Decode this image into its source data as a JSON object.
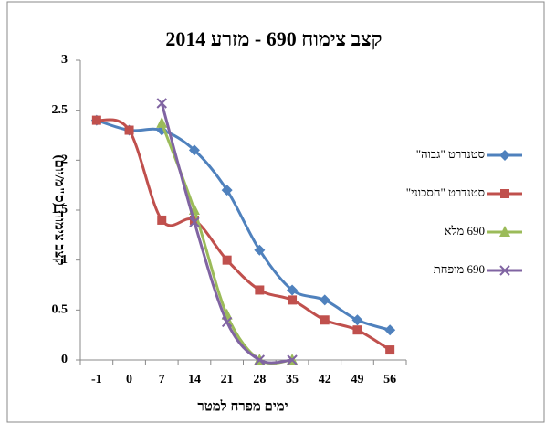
{
  "chart_data": {
    "type": "line",
    "title": "קצב צימוח 690 - מזרע 2014",
    "y_label": "קצב צימוח (ס\"מ/יום)",
    "x_label": "ימים מפרח למטר",
    "categories": [
      "-1",
      "0",
      "7",
      "14",
      "21",
      "28",
      "35",
      "42",
      "49",
      "56"
    ],
    "series": [
      {
        "name": "סטנדרט \"גבוה\"",
        "color": "#4f81bd",
        "marker": "diamond",
        "values": [
          2.4,
          2.3,
          2.3,
          2.1,
          1.7,
          1.1,
          0.7,
          0.6,
          0.4,
          0.3
        ]
      },
      {
        "name": "סטנדרט \"חסכוני\"",
        "color": "#c0504d",
        "marker": "square",
        "values": [
          2.4,
          2.3,
          1.4,
          1.4,
          1.0,
          0.7,
          0.6,
          0.4,
          0.3,
          0.1
        ]
      },
      {
        "name": "690 מלא",
        "color": "#9bbb59",
        "marker": "triangle",
        "values": [
          null,
          null,
          2.37,
          1.5,
          0.45,
          0,
          0,
          null,
          null,
          null
        ]
      },
      {
        "name": "690 מופחת",
        "color": "#8064a2",
        "marker": "x",
        "values": [
          null,
          null,
          2.57,
          1.38,
          0.38,
          0,
          0,
          null,
          null,
          null
        ]
      }
    ],
    "ylim": [
      0,
      3
    ],
    "yticks": [
      0,
      0.5,
      1,
      1.5,
      2,
      2.5,
      3
    ],
    "grid": false,
    "smooth": true,
    "legend": "right"
  }
}
